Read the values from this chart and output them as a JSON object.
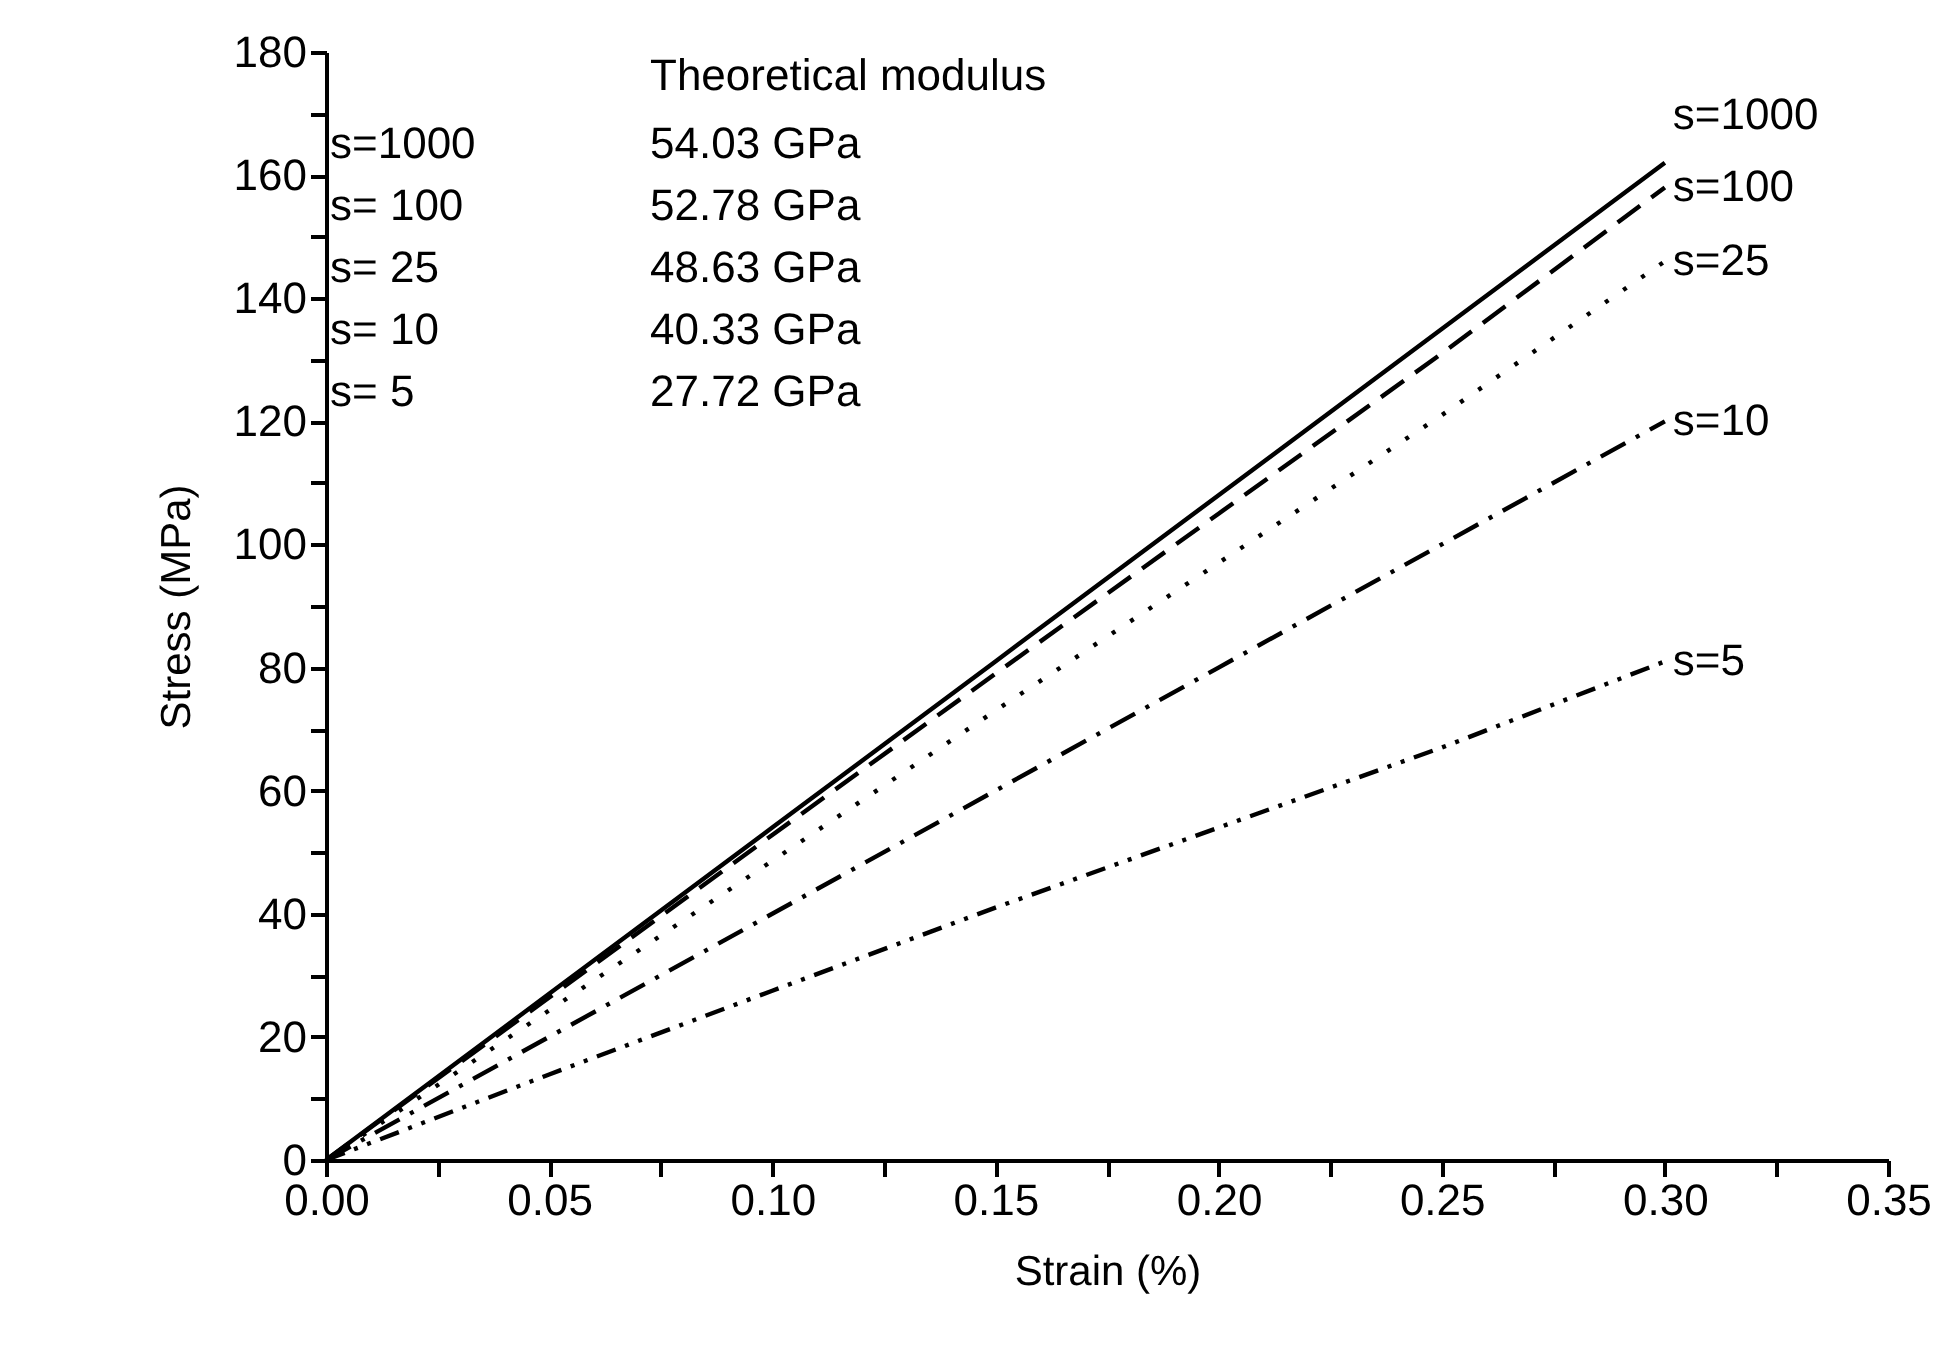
{
  "chart_data": {
    "type": "line",
    "xlabel": "Strain (%)",
    "ylabel": "Stress (MPa)",
    "x": [
      0,
      0.05,
      0.1,
      0.15,
      0.2,
      0.25,
      0.3
    ],
    "xlim": [
      0,
      0.35
    ],
    "ylim": [
      0,
      180
    ],
    "xticks": [
      {
        "value": 0,
        "label": "0.00"
      },
      {
        "value": 0.025,
        "label": null
      },
      {
        "value": 0.05,
        "label": "0.05"
      },
      {
        "value": 0.075,
        "label": null
      },
      {
        "value": 0.1,
        "label": "0.10"
      },
      {
        "value": 0.125,
        "label": null
      },
      {
        "value": 0.15,
        "label": "0.15"
      },
      {
        "value": 0.175,
        "label": null
      },
      {
        "value": 0.2,
        "label": "0.20"
      },
      {
        "value": 0.225,
        "label": null
      },
      {
        "value": 0.25,
        "label": "0.25"
      },
      {
        "value": 0.275,
        "label": null
      },
      {
        "value": 0.3,
        "label": "0.30"
      },
      {
        "value": 0.325,
        "label": null
      },
      {
        "value": 0.35,
        "label": "0.35"
      }
    ],
    "yticks": [
      0,
      {
        "value": 10,
        "label": null
      },
      20,
      {
        "value": 30,
        "label": null
      },
      40,
      {
        "value": 50,
        "label": null
      },
      60,
      {
        "value": 70,
        "label": null
      },
      80,
      {
        "value": 90,
        "label": null
      },
      100,
      {
        "value": 110,
        "label": null
      },
      120,
      {
        "value": 130,
        "label": null
      },
      140,
      {
        "value": 150,
        "label": null
      },
      160,
      {
        "value": 170,
        "label": null
      },
      180
    ],
    "series": [
      {
        "name": "s=1000",
        "color": "#000000",
        "line_style": "solid",
        "values": [
          0,
          27,
          54,
          81,
          108,
          135,
          162
        ]
      },
      {
        "name": "s=100",
        "color": "#000000",
        "line_style": "dashed",
        "values": [
          0,
          26.4,
          52.8,
          79,
          105,
          131,
          158
        ]
      },
      {
        "name": "s=25",
        "color": "#000000",
        "line_style": "dotted",
        "values": [
          0,
          24.3,
          48.6,
          73,
          97,
          121,
          146
        ]
      },
      {
        "name": "s=10",
        "color": "#000000",
        "line_style": "dashdot",
        "values": [
          0,
          20,
          40,
          60,
          80,
          100,
          120
        ]
      },
      {
        "name": "s=5",
        "color": "#000000",
        "line_style": "dashdotdot",
        "values": [
          0,
          13.9,
          27.5,
          41,
          54,
          67,
          81
        ]
      }
    ],
    "annotations": [
      "Theoretical modulus",
      "s=1000",
      "54.03 GPa",
      "s= 100",
      "52.78 GPa",
      "s=  25",
      "48.63 GPa",
      "s=  10",
      "40.33 GPa",
      "s=    5",
      "27.72 GPa"
    ],
    "grid": false,
    "legend": false,
    "marker": "none"
  }
}
